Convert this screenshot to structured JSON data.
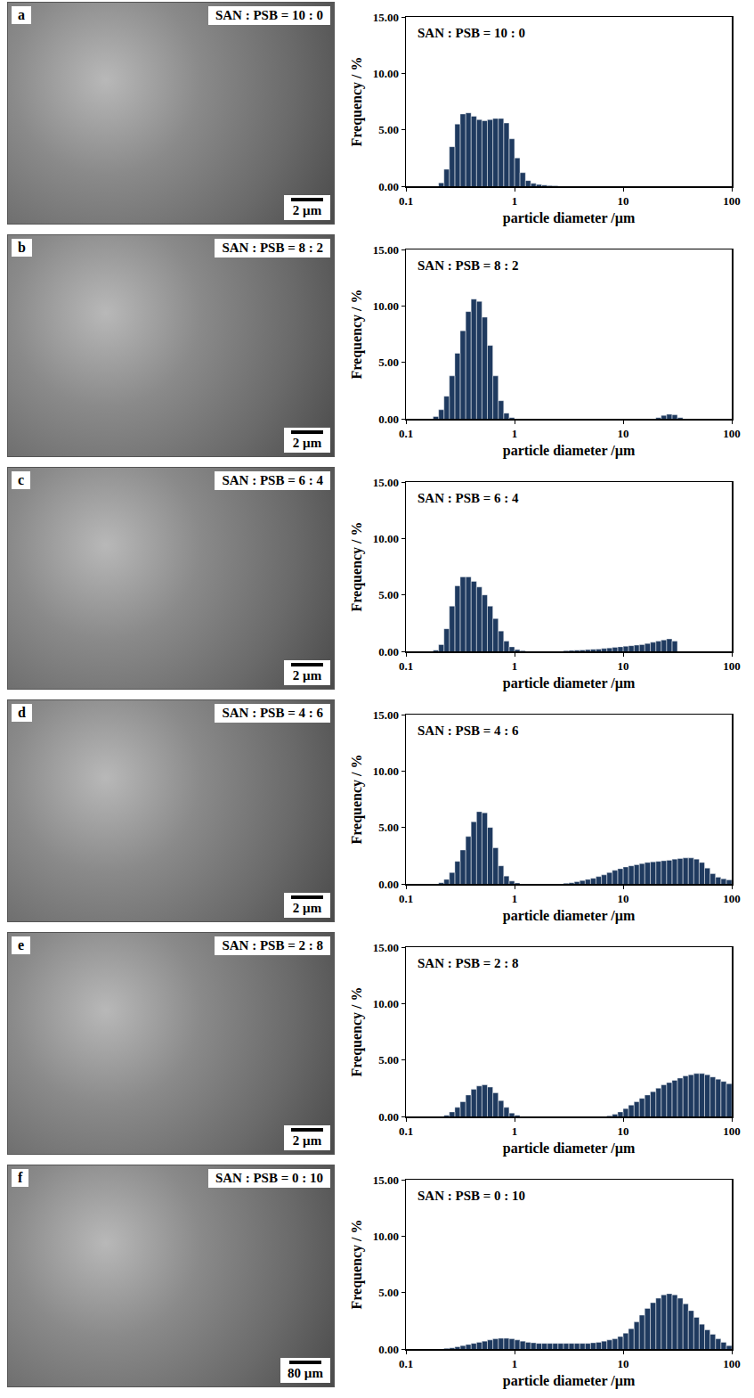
{
  "chart_data": [
    {
      "type": "histogram",
      "title": "SAN : PSB = 10 : 0",
      "x_label": "particle diameter /µm",
      "y_label": "Frequency / %",
      "log": "x",
      "grid": false,
      "color": "#1f3a5f",
      "bins": [
        0.1,
        0.112,
        0.126,
        0.141,
        0.158,
        0.178,
        0.2,
        0.224,
        0.251,
        0.282,
        0.316,
        0.355,
        0.398,
        0.447,
        0.501,
        0.562,
        0.631,
        0.708,
        0.794,
        0.891,
        1,
        1.12,
        1.26,
        1.41,
        1.58,
        1.78,
        2,
        2.24,
        2.51,
        2.82,
        3.16,
        3.55,
        3.98,
        4.47,
        5.01,
        5.62,
        6.31,
        7.08,
        7.94,
        8.91,
        10,
        11.2,
        12.6,
        14.1,
        15.8,
        17.8,
        20,
        22.4,
        25.1,
        28.2,
        31.6,
        35.5,
        39.8,
        44.7,
        50.1,
        56.2,
        63.1,
        70.8,
        79.4,
        89.1,
        100
      ],
      "values": [
        0,
        0,
        0,
        0,
        0,
        0,
        0.3,
        1.5,
        3.5,
        5.5,
        6.4,
        6.5,
        6.2,
        5.9,
        5.8,
        5.9,
        6.0,
        6.0,
        5.6,
        4.2,
        2.5,
        1.2,
        0.5,
        0.25,
        0.15,
        0.1,
        0.05,
        0.03,
        0,
        0,
        0,
        0,
        0,
        0,
        0,
        0,
        0,
        0,
        0,
        0,
        0,
        0,
        0,
        0,
        0,
        0,
        0,
        0,
        0,
        0,
        0,
        0,
        0,
        0,
        0,
        0,
        0,
        0,
        0,
        0
      ],
      "xlim": [
        0.1,
        100
      ],
      "xticks": [
        0.1,
        1,
        10,
        100
      ],
      "ylim": [
        0,
        15
      ],
      "yticks": [
        {
          "value": 0,
          "label": "0.00"
        },
        {
          "value": 5,
          "label": "5.00"
        },
        {
          "value": 10,
          "label": "10.00"
        },
        {
          "value": 15,
          "label": "15.00"
        }
      ]
    },
    {
      "type": "histogram",
      "title": "SAN : PSB = 8 : 2",
      "x_label": "particle diameter /µm",
      "y_label": "Frequency / %",
      "log": "x",
      "grid": false,
      "color": "#1f3a5f",
      "bins": [
        0.1,
        0.112,
        0.126,
        0.141,
        0.158,
        0.178,
        0.2,
        0.224,
        0.251,
        0.282,
        0.316,
        0.355,
        0.398,
        0.447,
        0.501,
        0.562,
        0.631,
        0.708,
        0.794,
        0.891,
        1,
        1.12,
        1.26,
        1.41,
        1.58,
        1.78,
        2,
        2.24,
        2.51,
        2.82,
        3.16,
        3.55,
        3.98,
        4.47,
        5.01,
        5.62,
        6.31,
        7.08,
        7.94,
        8.91,
        10,
        11.2,
        12.6,
        14.1,
        15.8,
        17.8,
        20,
        22.4,
        25.1,
        28.2,
        31.6,
        35.5,
        39.8,
        44.7,
        50.1,
        56.2,
        63.1,
        70.8,
        79.4,
        89.1,
        100
      ],
      "values": [
        0,
        0,
        0,
        0,
        0,
        0.2,
        0.8,
        2,
        3.8,
        5.8,
        7.8,
        9.5,
        10.6,
        10.4,
        9,
        6.5,
        3.8,
        1.6,
        0.5,
        0.1,
        0,
        0,
        0,
        0,
        0,
        0,
        0,
        0,
        0,
        0,
        0,
        0,
        0,
        0,
        0,
        0,
        0,
        0,
        0,
        0,
        0,
        0,
        0,
        0,
        0,
        0,
        0.1,
        0.3,
        0.4,
        0.35,
        0.1,
        0,
        0,
        0,
        0,
        0,
        0,
        0,
        0,
        0
      ],
      "xlim": [
        0.1,
        100
      ],
      "xticks": [
        0.1,
        1,
        10,
        100
      ],
      "ylim": [
        0,
        15
      ],
      "yticks": [
        {
          "value": 0,
          "label": "0.00"
        },
        {
          "value": 5,
          "label": "5.00"
        },
        {
          "value": 10,
          "label": "10.00"
        },
        {
          "value": 15,
          "label": "15.00"
        }
      ]
    },
    {
      "type": "histogram",
      "title": "SAN : PSB = 6 : 4",
      "x_label": "particle diameter /µm",
      "y_label": "Frequency / %",
      "log": "x",
      "grid": false,
      "color": "#1f3a5f",
      "bins": [
        0.1,
        0.112,
        0.126,
        0.141,
        0.158,
        0.178,
        0.2,
        0.224,
        0.251,
        0.282,
        0.316,
        0.355,
        0.398,
        0.447,
        0.501,
        0.562,
        0.631,
        0.708,
        0.794,
        0.891,
        1,
        1.12,
        1.26,
        1.41,
        1.58,
        1.78,
        2,
        2.24,
        2.51,
        2.82,
        3.16,
        3.55,
        3.98,
        4.47,
        5.01,
        5.62,
        6.31,
        7.08,
        7.94,
        8.91,
        10,
        11.2,
        12.6,
        14.1,
        15.8,
        17.8,
        20,
        22.4,
        25.1,
        28.2,
        31.6,
        35.5,
        39.8,
        44.7,
        50.1,
        56.2,
        63.1,
        70.8,
        79.4,
        89.1,
        100
      ],
      "values": [
        0,
        0,
        0,
        0,
        0,
        0.1,
        0.6,
        2,
        4,
        5.8,
        6.6,
        6.6,
        6.2,
        5.7,
        5,
        4,
        2.9,
        1.8,
        0.9,
        0.4,
        0.15,
        0.05,
        0,
        0,
        0,
        0,
        0,
        0,
        0,
        0.05,
        0.08,
        0.1,
        0.12,
        0.15,
        0.18,
        0.2,
        0.25,
        0.3,
        0.35,
        0.4,
        0.45,
        0.5,
        0.55,
        0.6,
        0.7,
        0.8,
        0.9,
        1.0,
        1.1,
        0.9,
        0,
        0,
        0,
        0,
        0,
        0,
        0,
        0,
        0,
        0
      ],
      "xlim": [
        0.1,
        100
      ],
      "xticks": [
        0.1,
        1,
        10,
        100
      ],
      "ylim": [
        0,
        15
      ],
      "yticks": [
        {
          "value": 0,
          "label": "0.00"
        },
        {
          "value": 5,
          "label": "5.00"
        },
        {
          "value": 10,
          "label": "10.00"
        },
        {
          "value": 15,
          "label": "15.00"
        }
      ]
    },
    {
      "type": "histogram",
      "title": "SAN : PSB = 4 : 6",
      "x_label": "particle diameter /µm",
      "y_label": "Frequency / %",
      "log": "x",
      "grid": false,
      "color": "#1f3a5f",
      "bins": [
        0.1,
        0.112,
        0.126,
        0.141,
        0.158,
        0.178,
        0.2,
        0.224,
        0.251,
        0.282,
        0.316,
        0.355,
        0.398,
        0.447,
        0.501,
        0.562,
        0.631,
        0.708,
        0.794,
        0.891,
        1,
        1.12,
        1.26,
        1.41,
        1.58,
        1.78,
        2,
        2.24,
        2.51,
        2.82,
        3.16,
        3.55,
        3.98,
        4.47,
        5.01,
        5.62,
        6.31,
        7.08,
        7.94,
        8.91,
        10,
        11.2,
        12.6,
        14.1,
        15.8,
        17.8,
        20,
        22.4,
        25.1,
        28.2,
        31.6,
        35.5,
        39.8,
        44.7,
        50.1,
        56.2,
        63.1,
        70.8,
        79.4,
        89.1,
        100
      ],
      "values": [
        0,
        0,
        0,
        0,
        0,
        0,
        0.1,
        0.4,
        1,
        2,
        3,
        4.2,
        5.5,
        6.4,
        6.3,
        5,
        3.2,
        1.6,
        0.7,
        0.25,
        0.08,
        0,
        0,
        0,
        0,
        0,
        0,
        0,
        0,
        0.05,
        0.1,
        0.2,
        0.3,
        0.4,
        0.5,
        0.65,
        0.8,
        1.0,
        1.2,
        1.35,
        1.5,
        1.6,
        1.7,
        1.8,
        1.9,
        1.95,
        2.0,
        2.05,
        2.1,
        2.2,
        2.25,
        2.3,
        2.3,
        2.2,
        1.9,
        1.4,
        0.9,
        0.6,
        0.45,
        0.35
      ],
      "xlim": [
        0.1,
        100
      ],
      "xticks": [
        0.1,
        1,
        10,
        100
      ],
      "ylim": [
        0,
        15
      ],
      "yticks": [
        {
          "value": 0,
          "label": "0.00"
        },
        {
          "value": 5,
          "label": "5.00"
        },
        {
          "value": 10,
          "label": "10.00"
        },
        {
          "value": 15,
          "label": "15.00"
        }
      ]
    },
    {
      "type": "histogram",
      "title": "SAN : PSB = 2 : 8",
      "x_label": "particle diameter /µm",
      "y_label": "Frequency / %",
      "log": "x",
      "grid": false,
      "color": "#1f3a5f",
      "bins": [
        0.1,
        0.112,
        0.126,
        0.141,
        0.158,
        0.178,
        0.2,
        0.224,
        0.251,
        0.282,
        0.316,
        0.355,
        0.398,
        0.447,
        0.501,
        0.562,
        0.631,
        0.708,
        0.794,
        0.891,
        1,
        1.12,
        1.26,
        1.41,
        1.58,
        1.78,
        2,
        2.24,
        2.51,
        2.82,
        3.16,
        3.55,
        3.98,
        4.47,
        5.01,
        5.62,
        6.31,
        7.08,
        7.94,
        8.91,
        10,
        11.2,
        12.6,
        14.1,
        15.8,
        17.8,
        20,
        22.4,
        25.1,
        28.2,
        31.6,
        35.5,
        39.8,
        44.7,
        50.1,
        56.2,
        63.1,
        70.8,
        79.4,
        89.1,
        100
      ],
      "values": [
        0,
        0,
        0,
        0,
        0,
        0,
        0,
        0.1,
        0.4,
        0.8,
        1.3,
        1.9,
        2.4,
        2.7,
        2.8,
        2.6,
        2.1,
        1.4,
        0.8,
        0.3,
        0.1,
        0,
        0,
        0,
        0,
        0,
        0,
        0,
        0,
        0,
        0,
        0,
        0,
        0,
        0,
        0,
        0,
        0.05,
        0.2,
        0.4,
        0.7,
        1.0,
        1.3,
        1.6,
        1.9,
        2.2,
        2.5,
        2.8,
        3.0,
        3.2,
        3.4,
        3.6,
        3.7,
        3.8,
        3.8,
        3.7,
        3.5,
        3.3,
        3.1,
        2.9
      ],
      "xlim": [
        0.1,
        100
      ],
      "xticks": [
        0.1,
        1,
        10,
        100
      ],
      "ylim": [
        0,
        15
      ],
      "yticks": [
        {
          "value": 0,
          "label": "0.00"
        },
        {
          "value": 5,
          "label": "5.00"
        },
        {
          "value": 10,
          "label": "10.00"
        },
        {
          "value": 15,
          "label": "15.00"
        }
      ]
    },
    {
      "type": "histogram",
      "title": "SAN : PSB = 0 : 10",
      "x_label": "particle diameter /µm",
      "y_label": "Frequency / %",
      "log": "x",
      "grid": false,
      "color": "#1f3a5f",
      "bins": [
        0.1,
        0.112,
        0.126,
        0.141,
        0.158,
        0.178,
        0.2,
        0.224,
        0.251,
        0.282,
        0.316,
        0.355,
        0.398,
        0.447,
        0.501,
        0.562,
        0.631,
        0.708,
        0.794,
        0.891,
        1,
        1.12,
        1.26,
        1.41,
        1.58,
        1.78,
        2,
        2.24,
        2.51,
        2.82,
        3.16,
        3.55,
        3.98,
        4.47,
        5.01,
        5.62,
        6.31,
        7.08,
        7.94,
        8.91,
        10,
        11.2,
        12.6,
        14.1,
        15.8,
        17.8,
        20,
        22.4,
        25.1,
        28.2,
        31.6,
        35.5,
        39.8,
        44.7,
        50.1,
        56.2,
        63.1,
        70.8,
        79.4,
        89.1,
        100
      ],
      "values": [
        0,
        0,
        0,
        0,
        0,
        0,
        0,
        0.05,
        0.1,
        0.2,
        0.3,
        0.4,
        0.5,
        0.6,
        0.7,
        0.8,
        0.9,
        0.95,
        0.95,
        0.9,
        0.8,
        0.7,
        0.6,
        0.55,
        0.5,
        0.5,
        0.5,
        0.5,
        0.5,
        0.5,
        0.5,
        0.5,
        0.5,
        0.5,
        0.55,
        0.6,
        0.7,
        0.8,
        0.9,
        1.1,
        1.4,
        1.8,
        2.4,
        3.0,
        3.6,
        4.1,
        4.5,
        4.8,
        4.9,
        4.8,
        4.5,
        4.0,
        3.4,
        2.8,
        2.2,
        1.7,
        1.3,
        0.9,
        0.6,
        0.3
      ],
      "xlim": [
        0.1,
        100
      ],
      "xticks": [
        0.1,
        1,
        10,
        100
      ],
      "ylim": [
        0,
        15
      ],
      "yticks": [
        {
          "value": 0,
          "label": "0.00"
        },
        {
          "value": 5,
          "label": "5.00"
        },
        {
          "value": 10,
          "label": "10.00"
        },
        {
          "value": 15,
          "label": "15.00"
        }
      ]
    }
  ],
  "sem_images": [
    {
      "letter": "a",
      "label": "SAN : PSB = 10 : 0",
      "scale_bar": "2 µm"
    },
    {
      "letter": "b",
      "label": "SAN : PSB = 8 : 2",
      "scale_bar": "2 µm"
    },
    {
      "letter": "c",
      "label": "SAN : PSB = 6 : 4",
      "scale_bar": "2 µm"
    },
    {
      "letter": "d",
      "label": "SAN : PSB = 4 : 6",
      "scale_bar": "2 µm"
    },
    {
      "letter": "e",
      "label": "SAN : PSB = 2 : 8",
      "scale_bar": "2 µm"
    },
    {
      "letter": "f",
      "label": "SAN : PSB = 0 : 10",
      "scale_bar": "80 µm"
    }
  ]
}
